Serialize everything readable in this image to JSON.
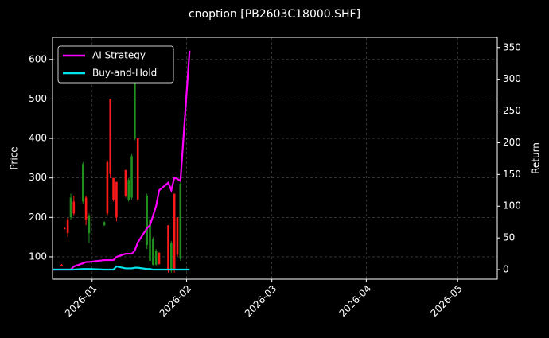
{
  "chart_data": {
    "type": "candlestick",
    "title": "cnoption [PB2603C18000.SHF]",
    "y_label": "Price",
    "y2_label": "Return",
    "x": [
      "2025-12-19",
      "2025-12-22",
      "2025-12-23",
      "2025-12-24",
      "2025-12-25",
      "2025-12-26",
      "2025-12-29",
      "2025-12-30",
      "2025-12-31",
      "2026-01-05",
      "2026-01-06",
      "2026-01-07",
      "2026-01-08",
      "2026-01-09",
      "2026-01-12",
      "2026-01-13",
      "2026-01-14",
      "2026-01-15",
      "2026-01-16",
      "2026-01-19",
      "2026-01-20",
      "2026-01-21",
      "2026-01-22",
      "2026-01-23",
      "2026-01-26",
      "2026-01-27",
      "2026-01-28",
      "2026-01-29",
      "2026-01-30",
      "2026-02-02"
    ],
    "open": [
      null,
      80,
      172,
      195,
      200,
      240,
      240,
      250,
      160,
      180,
      340,
      500,
      300,
      290,
      320,
      245,
      250,
      400,
      400,
      130,
      90,
      80,
      80,
      110,
      180,
      65,
      260,
      200,
      95,
      null
    ],
    "high": [
      null,
      82,
      175,
      200,
      260,
      255,
      340,
      255,
      210,
      190,
      345,
      500,
      300,
      290,
      320,
      300,
      360,
      580,
      400,
      260,
      200,
      150,
      120,
      112,
      180,
      140,
      260,
      200,
      290,
      null
    ],
    "low": [
      null,
      76,
      170,
      150,
      195,
      205,
      235,
      180,
      135,
      178,
      205,
      300,
      240,
      190,
      250,
      240,
      245,
      395,
      240,
      120,
      85,
      78,
      78,
      80,
      60,
      60,
      60,
      100,
      90,
      null
    ],
    "close": [
      null,
      77,
      171,
      160,
      250,
      210,
      335,
      195,
      205,
      188,
      210,
      310,
      245,
      200,
      255,
      295,
      355,
      575,
      245,
      255,
      195,
      145,
      115,
      82,
      65,
      135,
      70,
      105,
      285,
      null
    ],
    "up_color": "#1f8f1f",
    "down_color": "#ff1a1a",
    "series": [
      {
        "name": "AI Strategy",
        "color": "#ff00ff",
        "axis": "y2",
        "values": [
          0,
          0,
          0,
          0,
          0,
          5,
          10,
          12,
          12,
          15,
          15,
          15,
          15,
          20,
          25,
          25,
          25,
          30,
          43,
          65,
          70,
          85,
          100,
          125,
          137,
          125,
          145,
          143,
          140,
          345
        ]
      },
      {
        "name": "Buy-and-Hold",
        "color": "#00e5ee",
        "axis": "y2",
        "values": [
          0,
          0,
          0,
          0,
          0,
          0,
          1,
          1,
          1,
          0,
          0,
          0,
          0,
          5,
          2,
          2,
          2,
          3,
          3,
          1,
          1,
          0,
          0,
          0,
          0,
          0,
          0,
          0,
          0,
          0
        ]
      }
    ],
    "xlim": [
      "2025-12-19",
      "2026-05-14"
    ],
    "xticks": [
      {
        "value": "2026-01-01",
        "label": "2026-01"
      },
      {
        "value": "2026-02-01",
        "label": "2026-02"
      },
      {
        "value": "2026-03-01",
        "label": "2026-03"
      },
      {
        "value": "2026-04-01",
        "label": "2026-04"
      },
      {
        "value": "2026-05-01",
        "label": "2026-05"
      }
    ],
    "ylim": [
      43.5,
      656
    ],
    "yticks": [
      100,
      200,
      300,
      400,
      500,
      600
    ],
    "y2lim": [
      -15,
      366
    ],
    "y2ticks": [
      0,
      50,
      100,
      150,
      200,
      250,
      300,
      350
    ],
    "grid": true,
    "legend": "upper left"
  }
}
